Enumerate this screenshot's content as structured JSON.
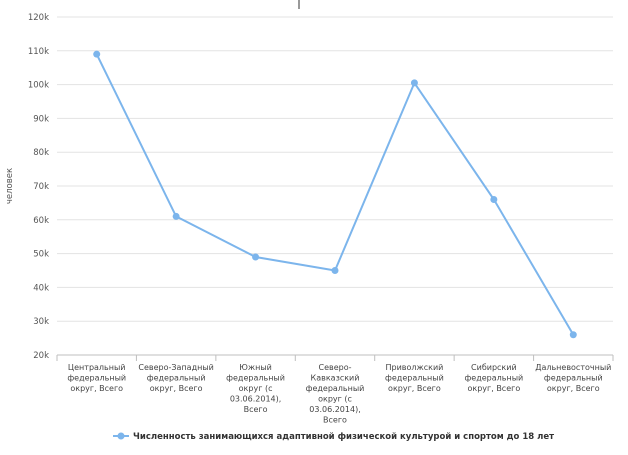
{
  "chart_data": {
    "type": "line",
    "ylabel": "человек",
    "ylim": [
      20000,
      120000
    ],
    "yticks": [
      {
        "value": 20000,
        "label": "20k"
      },
      {
        "value": 30000,
        "label": "30k"
      },
      {
        "value": 40000,
        "label": "40k"
      },
      {
        "value": 50000,
        "label": "50k"
      },
      {
        "value": 60000,
        "label": "60k"
      },
      {
        "value": 70000,
        "label": "70k"
      },
      {
        "value": 80000,
        "label": "80k"
      },
      {
        "value": 90000,
        "label": "90k"
      },
      {
        "value": 100000,
        "label": "100k"
      },
      {
        "value": 110000,
        "label": "110k"
      },
      {
        "value": 120000,
        "label": "120k"
      }
    ],
    "categories": [
      [
        "Центральный",
        "федеральный",
        "округ, Всего"
      ],
      [
        "Северо-Западный",
        "федеральный",
        "округ, Всего"
      ],
      [
        "Южный",
        "федеральный",
        "округ (с",
        "03.06.2014),",
        "Всего"
      ],
      [
        "Северо-",
        "Кавказский",
        "федеральный",
        "округ (с",
        "03.06.2014),",
        "Всего"
      ],
      [
        "Приволжский",
        "федеральный",
        "округ, Всего"
      ],
      [
        "Сибирский",
        "федеральный",
        "округ, Всего"
      ],
      [
        "Дальневосточный",
        "федеральный",
        "округ, Всего"
      ]
    ],
    "series": [
      {
        "name": "Численность занимающихся адаптивной физической культурой и спортом до 18 лет",
        "color": "#7cb5ec",
        "values": [
          109000,
          61000,
          49000,
          45000,
          100500,
          66000,
          26000
        ]
      }
    ],
    "grid": true,
    "legend": "bottom-center"
  }
}
